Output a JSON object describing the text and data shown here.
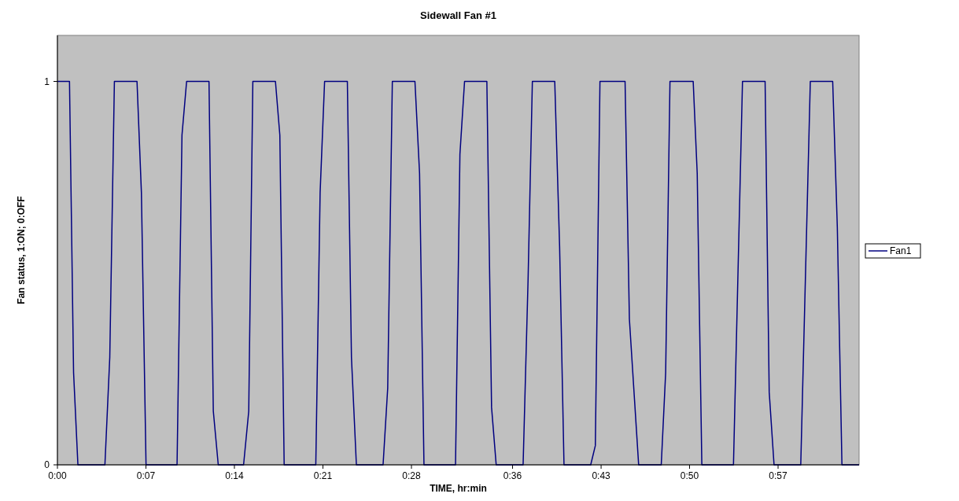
{
  "chart_data": {
    "type": "line",
    "title": "Sidewall Fan #1",
    "xlabel": "TIME, hr:min",
    "ylabel": "Fan status, 1:ON; 0:OFF",
    "series": [
      {
        "name": "Fan1",
        "color": "#000080",
        "x": [
          0,
          0.0159,
          0.0213,
          0.027,
          0.0626,
          0.069,
          0.0751,
          0.1049,
          0.1107,
          0.1168,
          0.1577,
          0.1642,
          0.1703,
          0.1998,
          0.2055,
          0.212,
          0.2454,
          0.2522,
          0.2576,
          0.2874,
          0.2932,
          0.2989,
          0.3406,
          0.3463,
          0.3522,
          0.3822,
          0.3876,
          0.3941,
          0.4293,
          0.4354,
          0.4415,
          0.4713,
          0.4774,
          0.4832,
          0.5248,
          0.5306,
          0.5367,
          0.5661,
          0.5723,
          0.5784,
          0.6139,
          0.6204,
          0.6261,
          0.6556,
          0.662,
          0.6678,
          0.703,
          0.7091,
          0.7152,
          0.7483,
          0.754,
          0.7662,
          0.796,
          0.8018,
          0.8075,
          0.8381,
          0.8434,
          0.8495,
          0.8912,
          0.9031,
          0.9329,
          0.9383,
          0.9447,
          0.9799,
          0.9925,
          1.022,
          1.0281,
          1.0342,
          1.0568
        ],
        "values": [
          1,
          1,
          0.24,
          0,
          0,
          0.28,
          1,
          1,
          0.71,
          0,
          0,
          0.86,
          1,
          1,
          0.14,
          0,
          0,
          0.14,
          1,
          1,
          0.86,
          0,
          0,
          0.71,
          1,
          1,
          0.28,
          0,
          0,
          0.2,
          1,
          1,
          0.76,
          0,
          0,
          0.81,
          1,
          1,
          0.15,
          0,
          0,
          0.48,
          1,
          1,
          0.57,
          0,
          0,
          0.05,
          1,
          1,
          0.38,
          0,
          0,
          0.24,
          1,
          1,
          0.76,
          0,
          0,
          1,
          1,
          0.19,
          0,
          0,
          1,
          1,
          0.62,
          0,
          0
        ]
      }
    ],
    "xlim": [
      0,
      1.0568
    ],
    "xticks": [
      {
        "value": 0,
        "label": "0:00"
      },
      {
        "value": 0.1167,
        "label": "0:07"
      },
      {
        "value": 0.2333,
        "label": "0:14"
      },
      {
        "value": 0.35,
        "label": "0:21"
      },
      {
        "value": 0.4667,
        "label": "0:28"
      },
      {
        "value": 0.6,
        "label": "0:36"
      },
      {
        "value": 0.7167,
        "label": "0:43"
      },
      {
        "value": 0.8333,
        "label": "0:50"
      },
      {
        "value": 0.95,
        "label": "0:57"
      }
    ],
    "ylim": [
      0,
      1.12
    ],
    "yticks": [
      0,
      1
    ],
    "legend": "right",
    "marker": "none",
    "line_style": "solid"
  }
}
